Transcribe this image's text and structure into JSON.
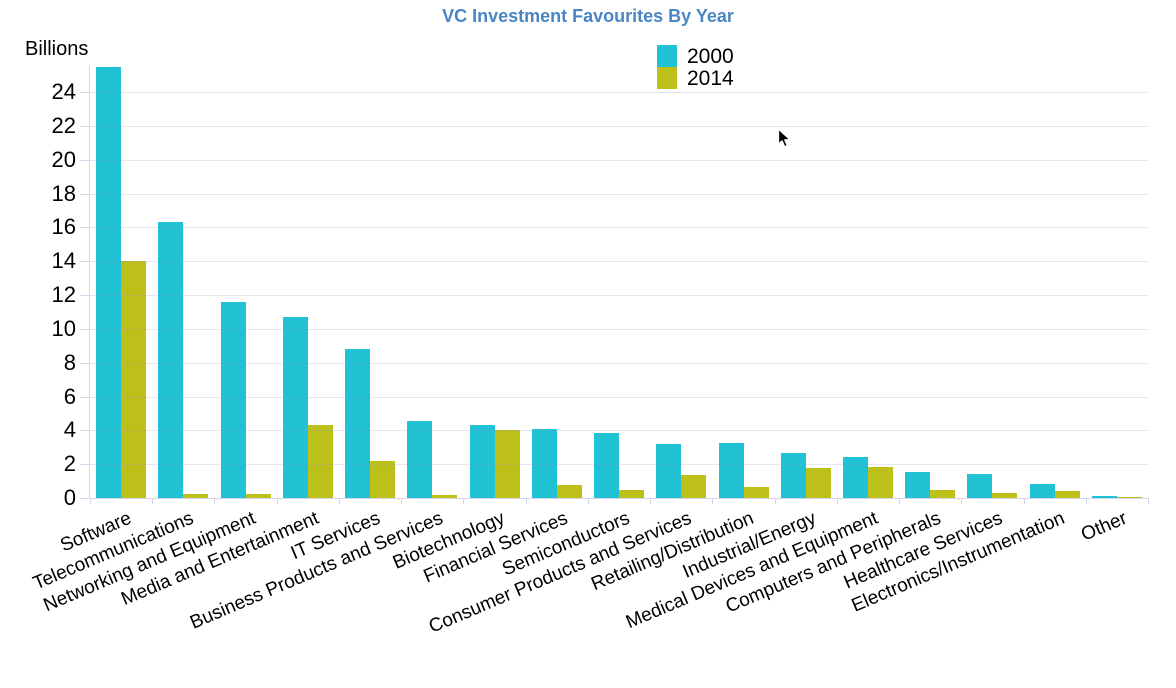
{
  "chart_data": {
    "type": "bar",
    "title": "VC Investment Favourites By Year",
    "title_color": "#4a86c4",
    "ylabel": "Billions",
    "xlabel": "",
    "categories": [
      "Software",
      "Telecommunications",
      "Networking and Equipment",
      "Media and Entertainment",
      "IT Services",
      "Business Products and Services",
      "Biotechnology",
      "Financial Services",
      "Semiconductors",
      "Consumer Products and Services",
      "Retailing/Distribution",
      "Industrial/Energy",
      "Medical Devices and Equipment",
      "Computers and Peripherals",
      "Healthcare Services",
      "Electronics/Instrumentation",
      "Other"
    ],
    "series": [
      {
        "name": "2000",
        "color": "#20c2d3",
        "values": [
          25.5,
          16.3,
          11.6,
          10.7,
          8.8,
          4.55,
          4.3,
          4.1,
          3.85,
          3.2,
          3.25,
          2.65,
          2.4,
          1.55,
          1.4,
          0.8,
          0.1
        ]
      },
      {
        "name": "2014",
        "color": "#bec01a",
        "values": [
          14.0,
          0.25,
          0.25,
          4.3,
          2.2,
          0.15,
          4.0,
          0.75,
          0.5,
          1.35,
          0.65,
          1.75,
          1.85,
          0.45,
          0.3,
          0.4,
          0.05
        ]
      }
    ],
    "ylim": [
      0,
      25.6
    ],
    "yticks": [
      0,
      2,
      4,
      6,
      8,
      10,
      12,
      14,
      16,
      18,
      20,
      22,
      24
    ],
    "grid": true,
    "gridline_color": "#e6e6f4",
    "axis_color": "#d6d6ea",
    "legend_position": "top-center"
  }
}
